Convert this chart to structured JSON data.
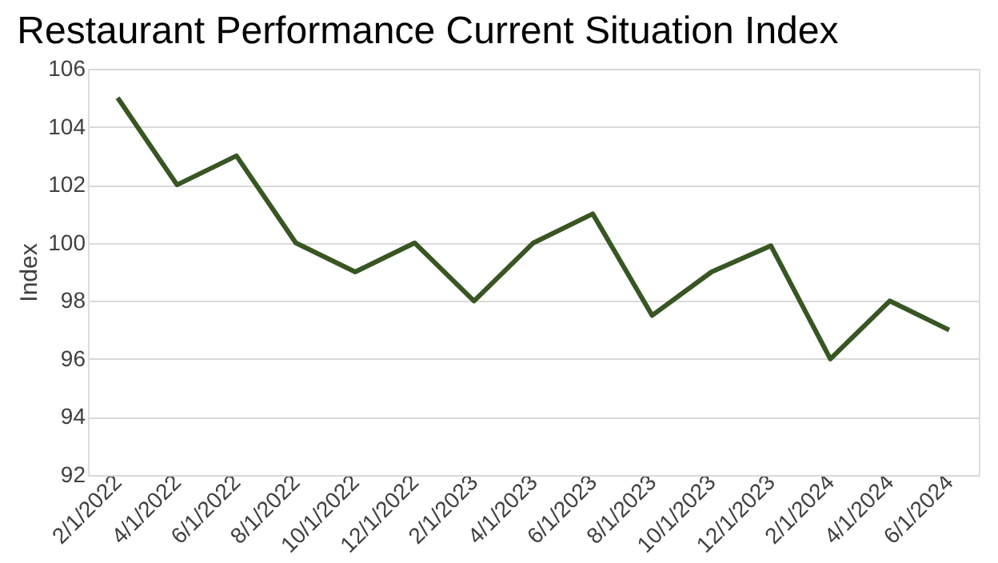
{
  "chart_data": {
    "type": "line",
    "title": "Restaurant Performance Current Situation Index",
    "ylabel": "Index",
    "categories": [
      "2/1/2022",
      "4/1/2022",
      "6/1/2022",
      "8/1/2022",
      "10/1/2022",
      "12/1/2022",
      "2/1/2023",
      "4/1/2023",
      "6/1/2023",
      "8/1/2023",
      "10/1/2023",
      "12/1/2023",
      "2/1/2024",
      "4/1/2024",
      "6/1/2024"
    ],
    "series": [
      {
        "color": "#375623",
        "values": [
          105,
          102,
          103,
          100,
          99,
          100,
          98,
          100,
          101,
          97.5,
          99,
          99.9,
          96,
          98,
          97
        ]
      }
    ],
    "ylim": [
      92,
      106
    ],
    "yticks": [
      92,
      94,
      96,
      98,
      100,
      102,
      104,
      106
    ],
    "grid": "y",
    "marker": "none",
    "line_style": "solid"
  }
}
